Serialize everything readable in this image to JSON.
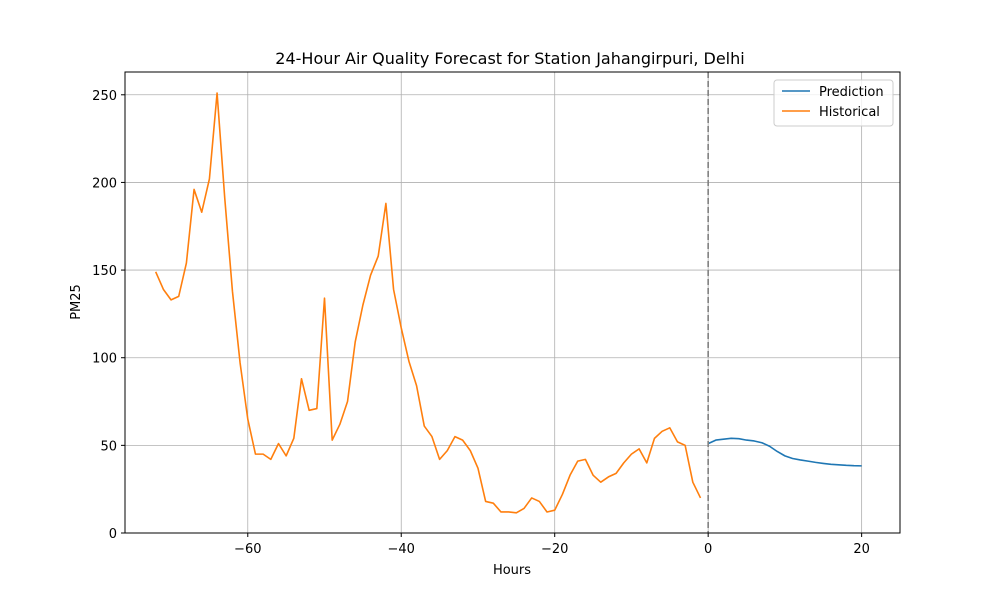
{
  "chart_data": {
    "type": "line",
    "title": "24-Hour Air Quality Forecast for Station Jahangirpuri, Delhi",
    "xlabel": "Hours",
    "ylabel": "PM25",
    "xlim": [
      -76,
      25
    ],
    "ylim": [
      0,
      263
    ],
    "xticks": [
      -60,
      -40,
      -20,
      0,
      20
    ],
    "xtick_labels": [
      "−60",
      "−40",
      "−20",
      "0",
      "20"
    ],
    "yticks": [
      0,
      50,
      100,
      150,
      200,
      250
    ],
    "ytick_labels": [
      "0",
      "50",
      "100",
      "150",
      "200",
      "250"
    ],
    "grid": true,
    "legend_position": "top-right",
    "vline": {
      "x": 0,
      "style": "dashed",
      "color": "#808080"
    },
    "series": [
      {
        "name": "Prediction",
        "color": "#1f77b4",
        "x": [
          0,
          1,
          2,
          3,
          4,
          5,
          6,
          7,
          8,
          9,
          10,
          11,
          12,
          13,
          14,
          15,
          16,
          17,
          18,
          19,
          20
        ],
        "y": [
          51,
          53,
          53.5,
          54,
          53.8,
          53,
          52.5,
          51.5,
          49.5,
          46.5,
          44,
          42.5,
          41.7,
          41,
          40.3,
          39.7,
          39.2,
          38.9,
          38.6,
          38.4,
          38.3
        ]
      },
      {
        "name": "Historical",
        "color": "#ff7f0e",
        "x": [
          -72,
          -71,
          -70,
          -69,
          -68,
          -67,
          -66,
          -65,
          -64,
          -63,
          -62,
          -61,
          -60,
          -59,
          -58,
          -57,
          -56,
          -55,
          -54,
          -53,
          -52,
          -51,
          -50,
          -49,
          -48,
          -47,
          -46,
          -45,
          -44,
          -43,
          -42,
          -41,
          -40,
          -39,
          -38,
          -37,
          -36,
          -35,
          -34,
          -33,
          -32,
          -31,
          -30,
          -29,
          -28,
          -27,
          -26,
          -25,
          -24,
          -23,
          -22,
          -21,
          -20,
          -19,
          -18,
          -17,
          -16,
          -15,
          -14,
          -13,
          -12,
          -11,
          -10,
          -9,
          -8,
          -7,
          -6,
          -5,
          -4,
          -3,
          -2,
          -1
        ],
        "y": [
          149,
          139,
          133,
          135,
          154,
          196,
          183,
          202,
          251,
          191,
          138,
          97,
          65,
          45,
          45,
          42,
          51,
          44,
          54,
          88,
          70,
          71,
          134,
          53,
          62,
          75,
          109,
          130,
          147,
          158,
          188,
          139,
          117,
          98,
          84,
          61,
          55,
          42,
          47,
          55,
          53,
          47,
          37,
          18,
          17,
          12,
          12,
          11.5,
          14,
          20,
          18,
          12,
          13,
          22,
          33,
          41,
          42,
          33,
          29,
          32,
          34,
          40,
          45,
          48,
          40,
          54,
          58,
          60,
          52,
          50,
          29,
          20
        ]
      }
    ]
  }
}
